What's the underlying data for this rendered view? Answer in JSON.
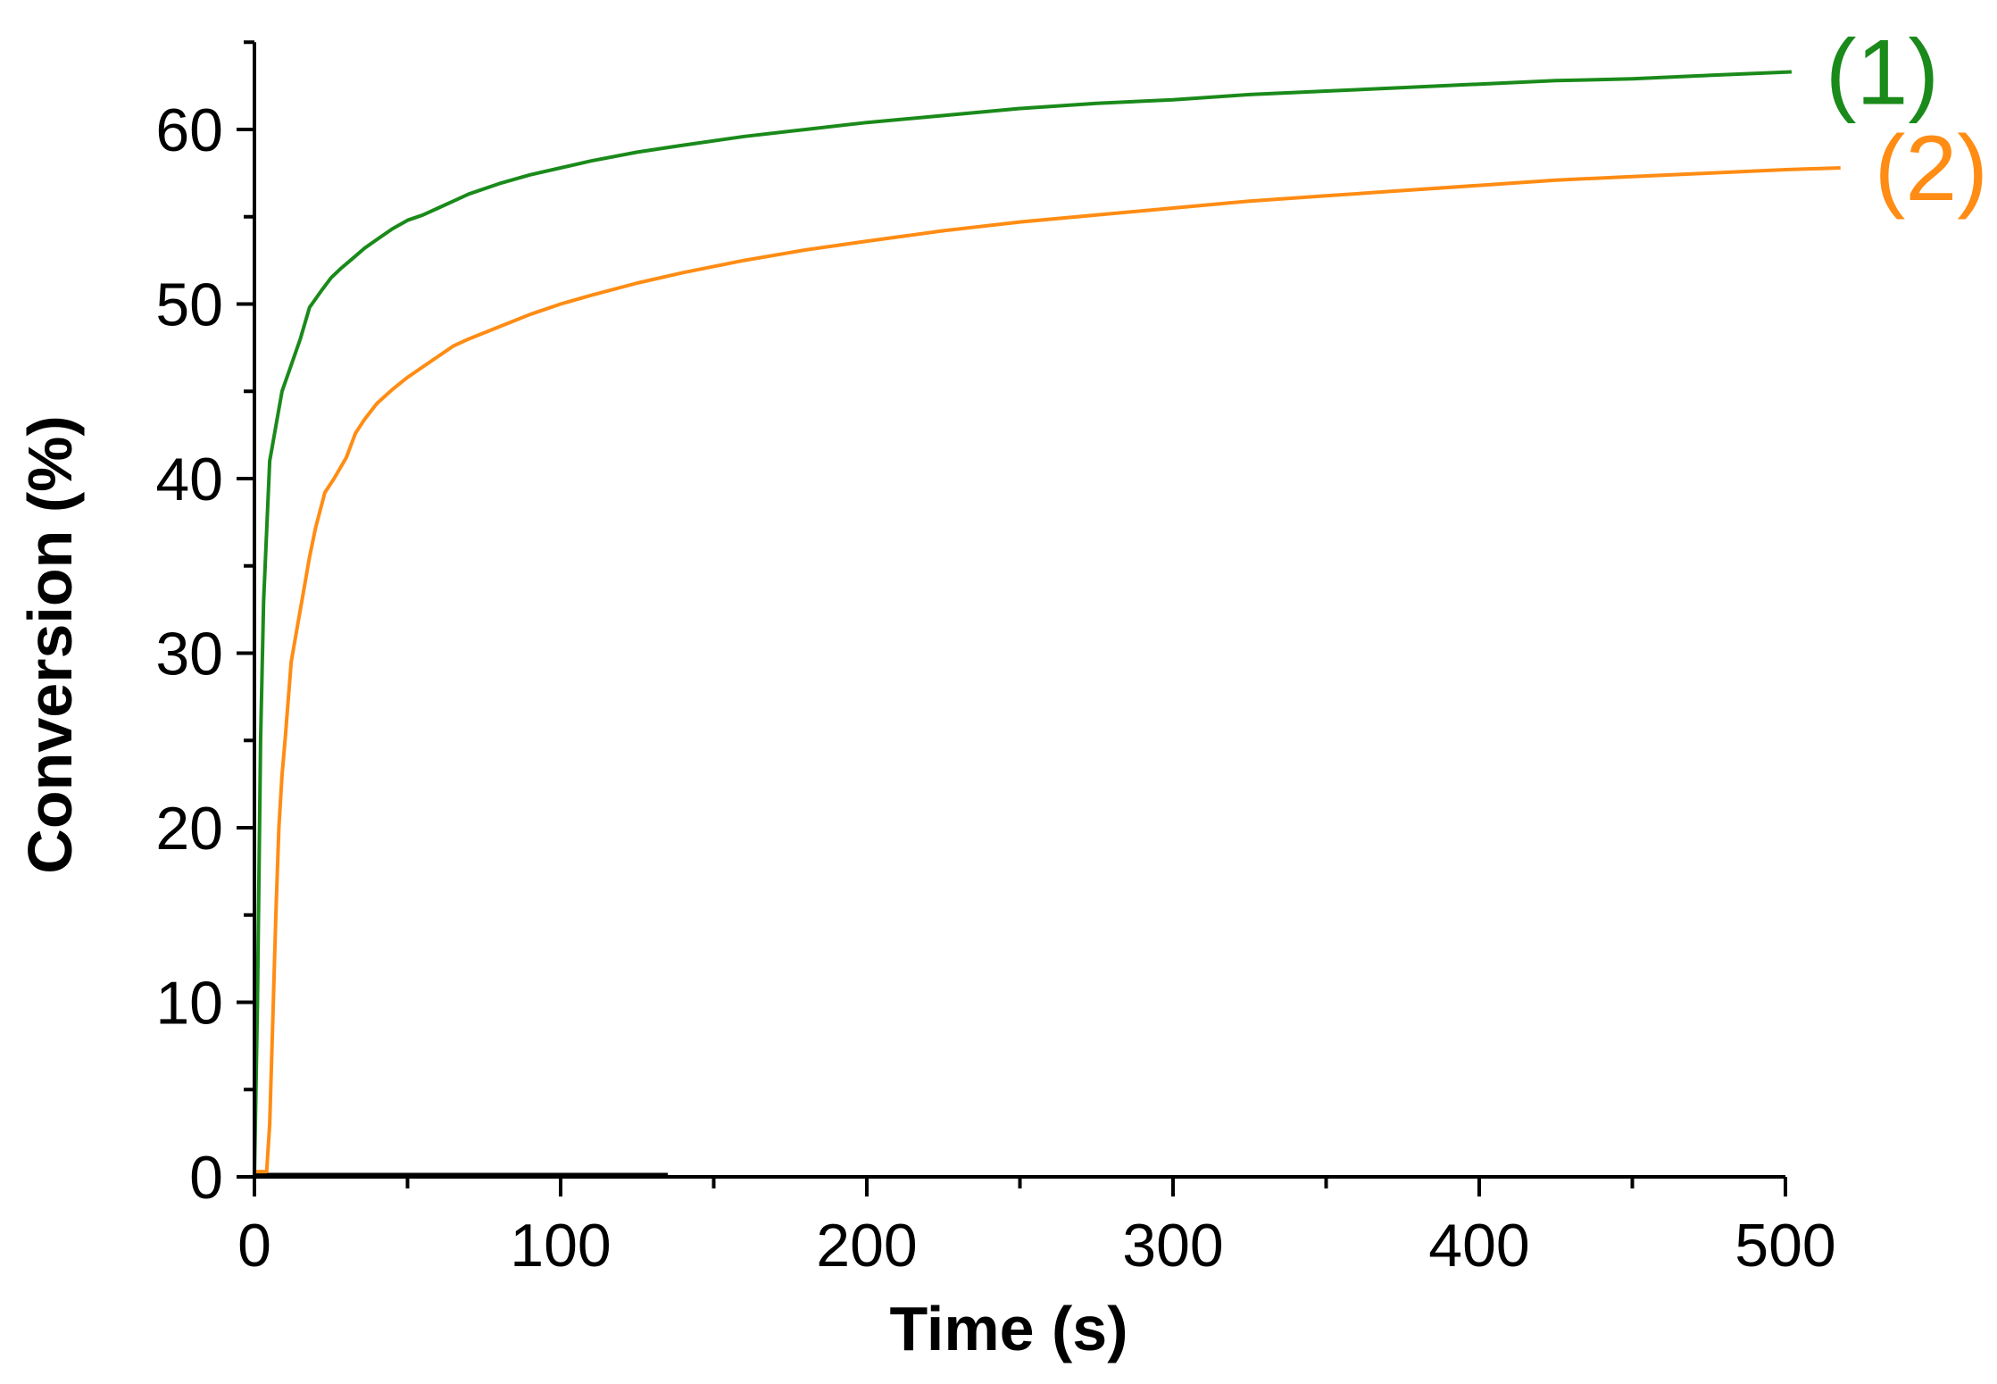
{
  "chart_data": {
    "type": "line",
    "xlabel": "Time (s)",
    "ylabel": "Conversion (%)",
    "xlim": [
      0,
      520
    ],
    "ylim": [
      0,
      65
    ],
    "xticks": [
      0,
      100,
      200,
      300,
      400,
      500
    ],
    "yticks": [
      0,
      10,
      20,
      30,
      40,
      50,
      60
    ],
    "x_minor_step": 50,
    "y_minor_step": 5,
    "grid": false,
    "series": [
      {
        "name": "(1)",
        "color": "#1a8a1a",
        "points": [
          [
            0,
            0
          ],
          [
            1,
            10
          ],
          [
            2,
            25
          ],
          [
            3,
            33
          ],
          [
            4,
            37
          ],
          [
            5,
            41
          ],
          [
            7,
            43
          ],
          [
            9,
            45
          ],
          [
            12,
            46.5
          ],
          [
            15,
            48
          ],
          [
            18,
            49.8
          ],
          [
            22,
            50.8
          ],
          [
            25,
            51.5
          ],
          [
            28,
            52
          ],
          [
            32,
            52.6
          ],
          [
            36,
            53.2
          ],
          [
            40,
            53.7
          ],
          [
            45,
            54.3
          ],
          [
            50,
            54.8
          ],
          [
            55,
            55.1
          ],
          [
            60,
            55.5
          ],
          [
            65,
            55.9
          ],
          [
            70,
            56.3
          ],
          [
            80,
            56.9
          ],
          [
            90,
            57.4
          ],
          [
            100,
            57.8
          ],
          [
            110,
            58.2
          ],
          [
            125,
            58.7
          ],
          [
            140,
            59.1
          ],
          [
            160,
            59.6
          ],
          [
            180,
            60
          ],
          [
            200,
            60.4
          ],
          [
            225,
            60.8
          ],
          [
            250,
            61.2
          ],
          [
            275,
            61.5
          ],
          [
            300,
            61.7
          ],
          [
            325,
            62
          ],
          [
            350,
            62.2
          ],
          [
            375,
            62.4
          ],
          [
            400,
            62.6
          ],
          [
            425,
            62.8
          ],
          [
            450,
            62.9
          ],
          [
            475,
            63.1
          ],
          [
            502,
            63.3
          ]
        ]
      },
      {
        "name": "(2)",
        "color": "#ff8c14",
        "points": [
          [
            0,
            0.3
          ],
          [
            4,
            0.3
          ],
          [
            5,
            3
          ],
          [
            6,
            9
          ],
          [
            7,
            15
          ],
          [
            8,
            20
          ],
          [
            9,
            23
          ],
          [
            10,
            25
          ],
          [
            12,
            29.5
          ],
          [
            14,
            31.5
          ],
          [
            16,
            33.5
          ],
          [
            18,
            35.5
          ],
          [
            20,
            37.2
          ],
          [
            23,
            39.2
          ],
          [
            26,
            40
          ],
          [
            30,
            41.2
          ],
          [
            33,
            42.6
          ],
          [
            36,
            43.4
          ],
          [
            40,
            44.3
          ],
          [
            45,
            45.1
          ],
          [
            50,
            45.8
          ],
          [
            55,
            46.4
          ],
          [
            60,
            47
          ],
          [
            65,
            47.6
          ],
          [
            70,
            48
          ],
          [
            80,
            48.7
          ],
          [
            90,
            49.4
          ],
          [
            100,
            50
          ],
          [
            110,
            50.5
          ],
          [
            125,
            51.2
          ],
          [
            140,
            51.8
          ],
          [
            160,
            52.5
          ],
          [
            180,
            53.1
          ],
          [
            200,
            53.6
          ],
          [
            225,
            54.2
          ],
          [
            250,
            54.7
          ],
          [
            275,
            55.1
          ],
          [
            300,
            55.5
          ],
          [
            325,
            55.9
          ],
          [
            350,
            56.2
          ],
          [
            375,
            56.5
          ],
          [
            400,
            56.8
          ],
          [
            425,
            57.1
          ],
          [
            450,
            57.3
          ],
          [
            475,
            57.5
          ],
          [
            500,
            57.7
          ],
          [
            518,
            57.8
          ]
        ]
      }
    ]
  }
}
